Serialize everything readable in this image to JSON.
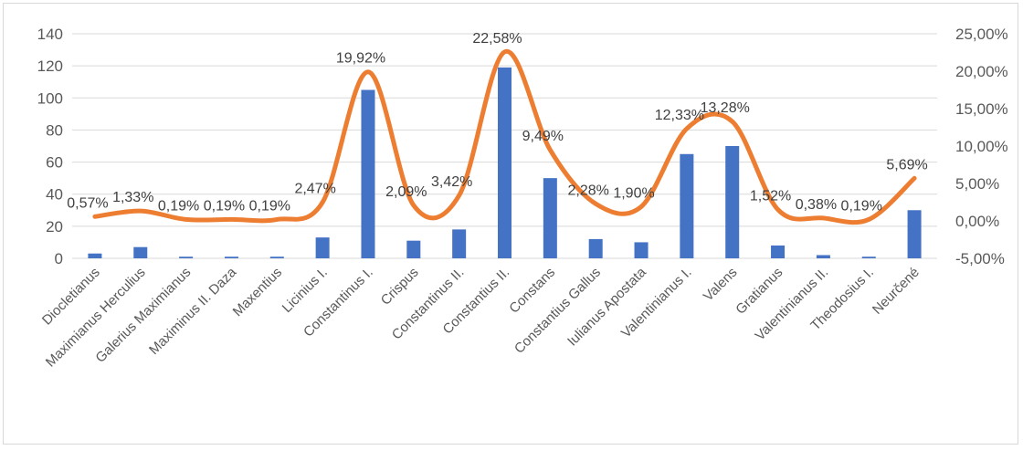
{
  "chart_data": {
    "type": "bar",
    "categories": [
      "Diocletianus",
      "Maximianus Herculius",
      "Galerius Maximianus",
      "Maximinus II. Daza",
      "Maxentius",
      "Licinius I.",
      "Constantinus I.",
      "Crispus",
      "Constantinus II.",
      "Constantius II.",
      "Constans",
      "Constantius Gallus",
      "Iulianus Apostata",
      "Valentinianus I.",
      "Valens",
      "Gratianus",
      "Valentinianus II.",
      "Theodosius I.",
      "Neurčené"
    ],
    "series": [
      {
        "type": "bar",
        "color": "#4472c4",
        "axis": "left",
        "values": [
          3,
          7,
          1,
          1,
          1,
          13,
          105,
          11,
          18,
          119,
          50,
          12,
          10,
          65,
          70,
          8,
          2,
          1,
          30
        ]
      },
      {
        "type": "line",
        "color": "#ed7d31",
        "axis": "right",
        "smooth": true,
        "values": [
          0.57,
          1.33,
          0.19,
          0.19,
          0.19,
          2.47,
          19.92,
          2.09,
          3.42,
          22.58,
          9.49,
          2.28,
          1.9,
          12.33,
          13.28,
          1.52,
          0.38,
          0.19,
          5.69
        ],
        "labels": [
          "0,57%",
          "1,33%",
          "0,19%",
          "0,19%",
          "0,19%",
          "2,47%",
          "19,92%",
          "2,09%",
          "3,42%",
          "22,58%",
          "9,49%",
          "2,28%",
          "1,90%",
          "12,33%",
          "13,28%",
          "1,52%",
          "0,38%",
          "0,19%",
          "5,69%"
        ]
      }
    ],
    "y_left": {
      "min": 0,
      "max": 140,
      "ticks": [
        "0",
        "20",
        "40",
        "60",
        "80",
        "100",
        "120",
        "140"
      ]
    },
    "y_right": {
      "min": -5,
      "max": 25,
      "ticks": [
        "-5,00%",
        "0,00%",
        "5,00%",
        "10,00%",
        "15,00%",
        "20,00%",
        "25,00%"
      ]
    },
    "grid": true,
    "legend": "none"
  }
}
